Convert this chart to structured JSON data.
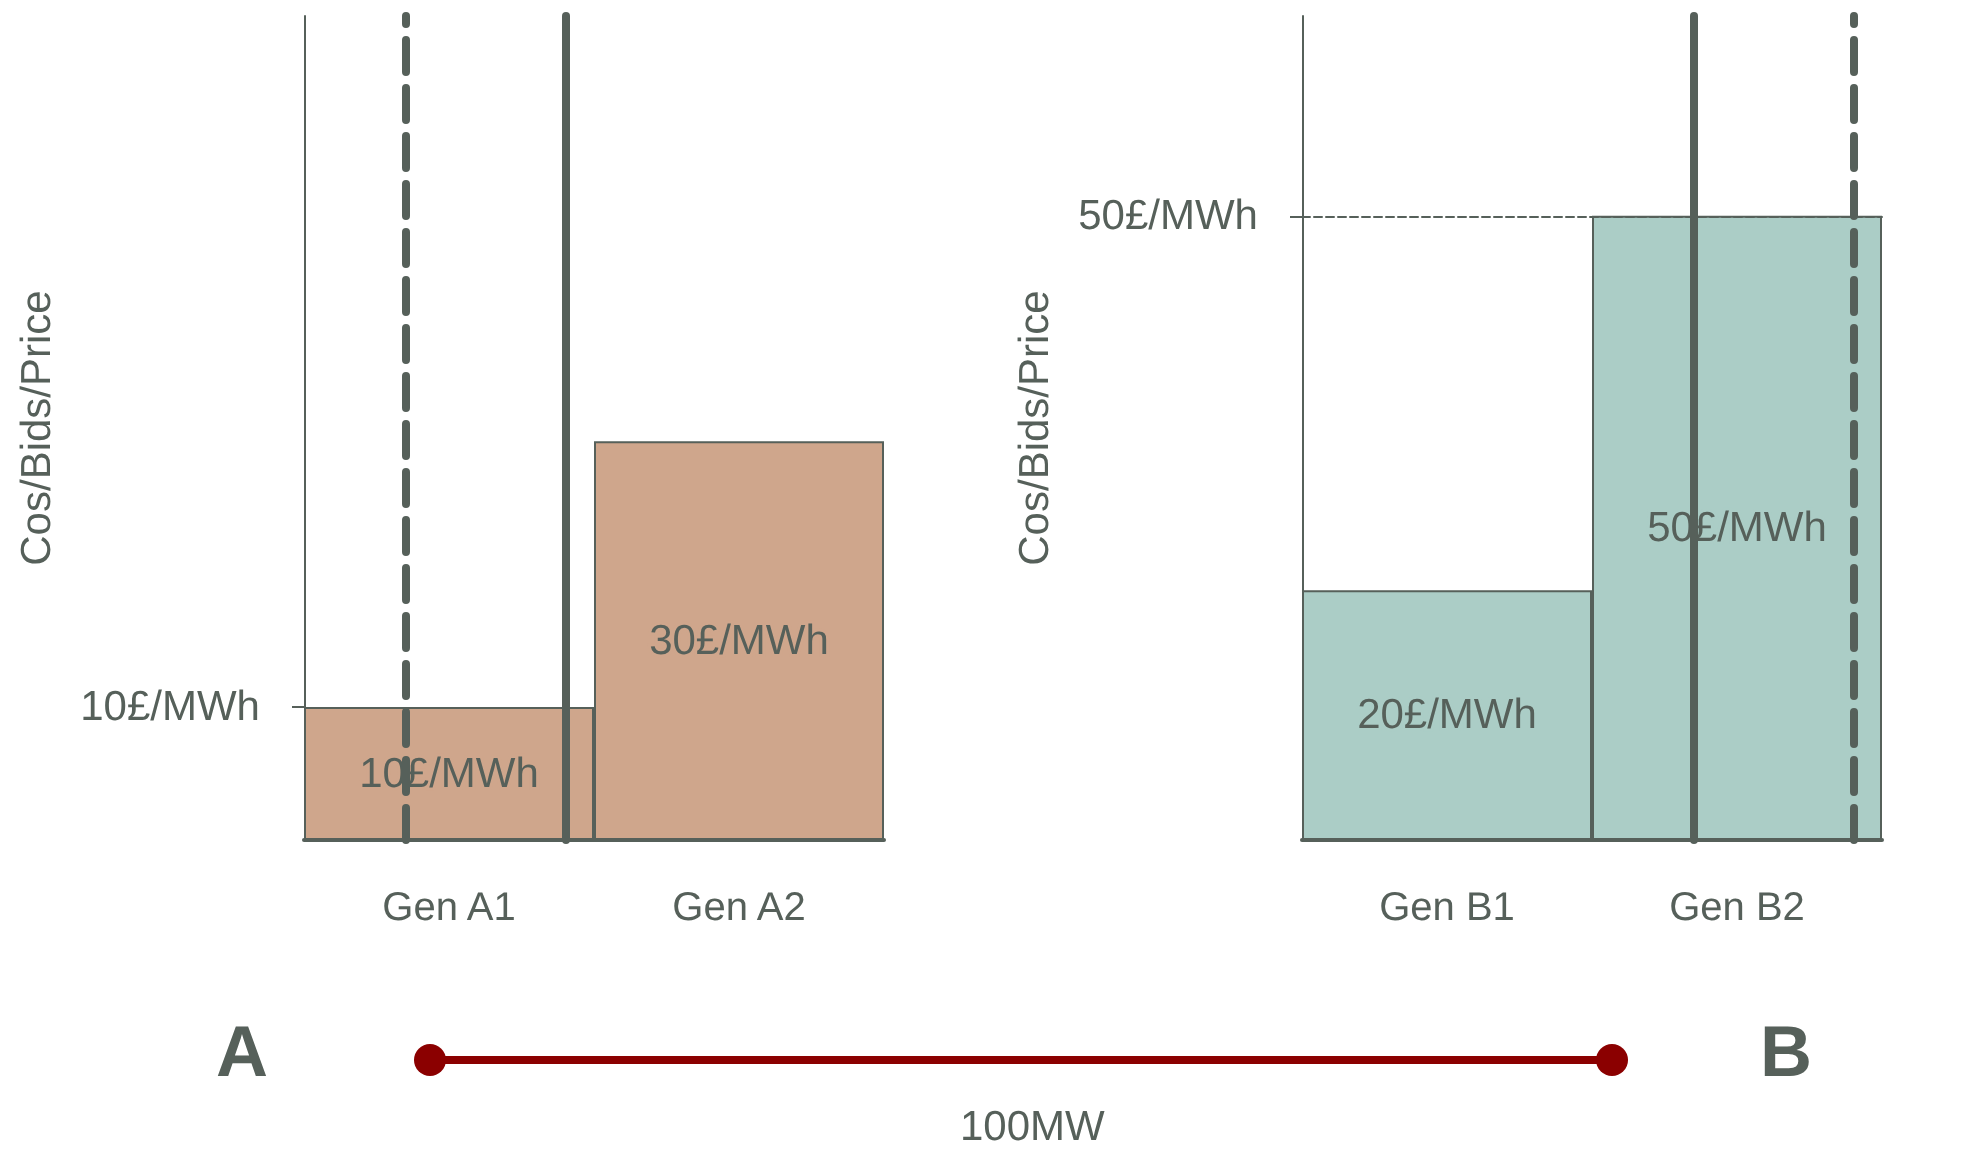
{
  "chart_data": [
    {
      "type": "bar",
      "ylabel": "Cos/Bids/Price",
      "categories": [
        "Gen A1",
        "Gen A2"
      ],
      "values": [
        10,
        30
      ],
      "colors": [
        "#cfa68c",
        "#cfa68c"
      ],
      "value_labels": [
        "10£/MWh",
        "30£/MWh"
      ],
      "ylim": [
        0,
        62
      ],
      "yticks": [
        {
          "value": 10,
          "label": "10£/MWh"
        }
      ],
      "ref_lines": [
        {
          "axis": "x",
          "value": "Gen A1",
          "line_style": "dashed",
          "color": "#56605a"
        },
        {
          "axis": "x",
          "value": "Gen A1",
          "line_style": "solid",
          "color": "#56605a"
        }
      ],
      "annotations": [
        "A",
        "B",
        "100MW"
      ]
    },
    {
      "type": "bar",
      "ylabel": "Cos/Bids/Price",
      "categories": [
        "Gen B1",
        "Gen B2"
      ],
      "values": [
        20,
        50
      ],
      "colors": [
        "#abcdc6",
        "#abcdc6"
      ],
      "value_labels": [
        "20£/MWh",
        "50£/MWh"
      ],
      "ylim": [
        0,
        66
      ],
      "yticks": [
        {
          "value": 50,
          "label": "50£/MWh"
        }
      ],
      "ref_lines": [
        {
          "axis": "x",
          "value": "Gen B2",
          "line_style": "solid",
          "color": "#56605a"
        },
        {
          "axis": "x",
          "value": "Gen B2",
          "line_style": "dashed",
          "color": "#56605a"
        },
        {
          "axis": "y",
          "value": 50,
          "line_style": "dashed",
          "color": "#56605a"
        }
      ]
    }
  ]
}
